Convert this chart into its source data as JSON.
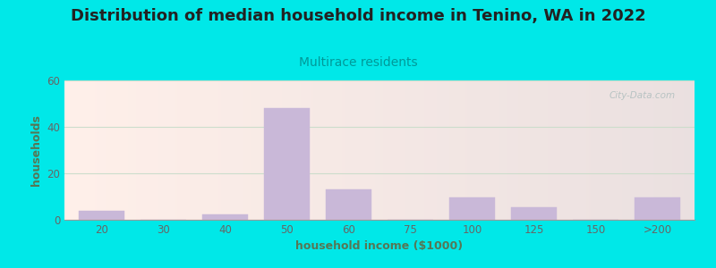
{
  "title": "Distribution of median household income in Tenino, WA in 2022",
  "subtitle": "Multirace residents",
  "xlabel": "household income ($1000)",
  "ylabel": "households",
  "bar_labels": [
    "20",
    "30",
    "40",
    "50",
    "60",
    "75",
    "100",
    "125",
    "150",
    ">200"
  ],
  "bar_values": [
    4,
    0,
    2.5,
    48,
    13,
    0,
    9.5,
    5.5,
    0,
    9.5
  ],
  "bar_color": "#c9b8d8",
  "bar_edgecolor": "#c9b8d8",
  "ylim": [
    0,
    60
  ],
  "yticks": [
    0,
    20,
    40,
    60
  ],
  "bg_outer": "#00e8e8",
  "bg_plot": "#e8f5e0",
  "title_fontsize": 13,
  "subtitle_fontsize": 10,
  "subtitle_color": "#009999",
  "axis_label_fontsize": 9,
  "tick_fontsize": 8.5,
  "ylabel_color": "#557755",
  "xlabel_color": "#557755",
  "tick_color": "#666666",
  "watermark": "City-Data.com",
  "grid_color": "#ccddcc"
}
